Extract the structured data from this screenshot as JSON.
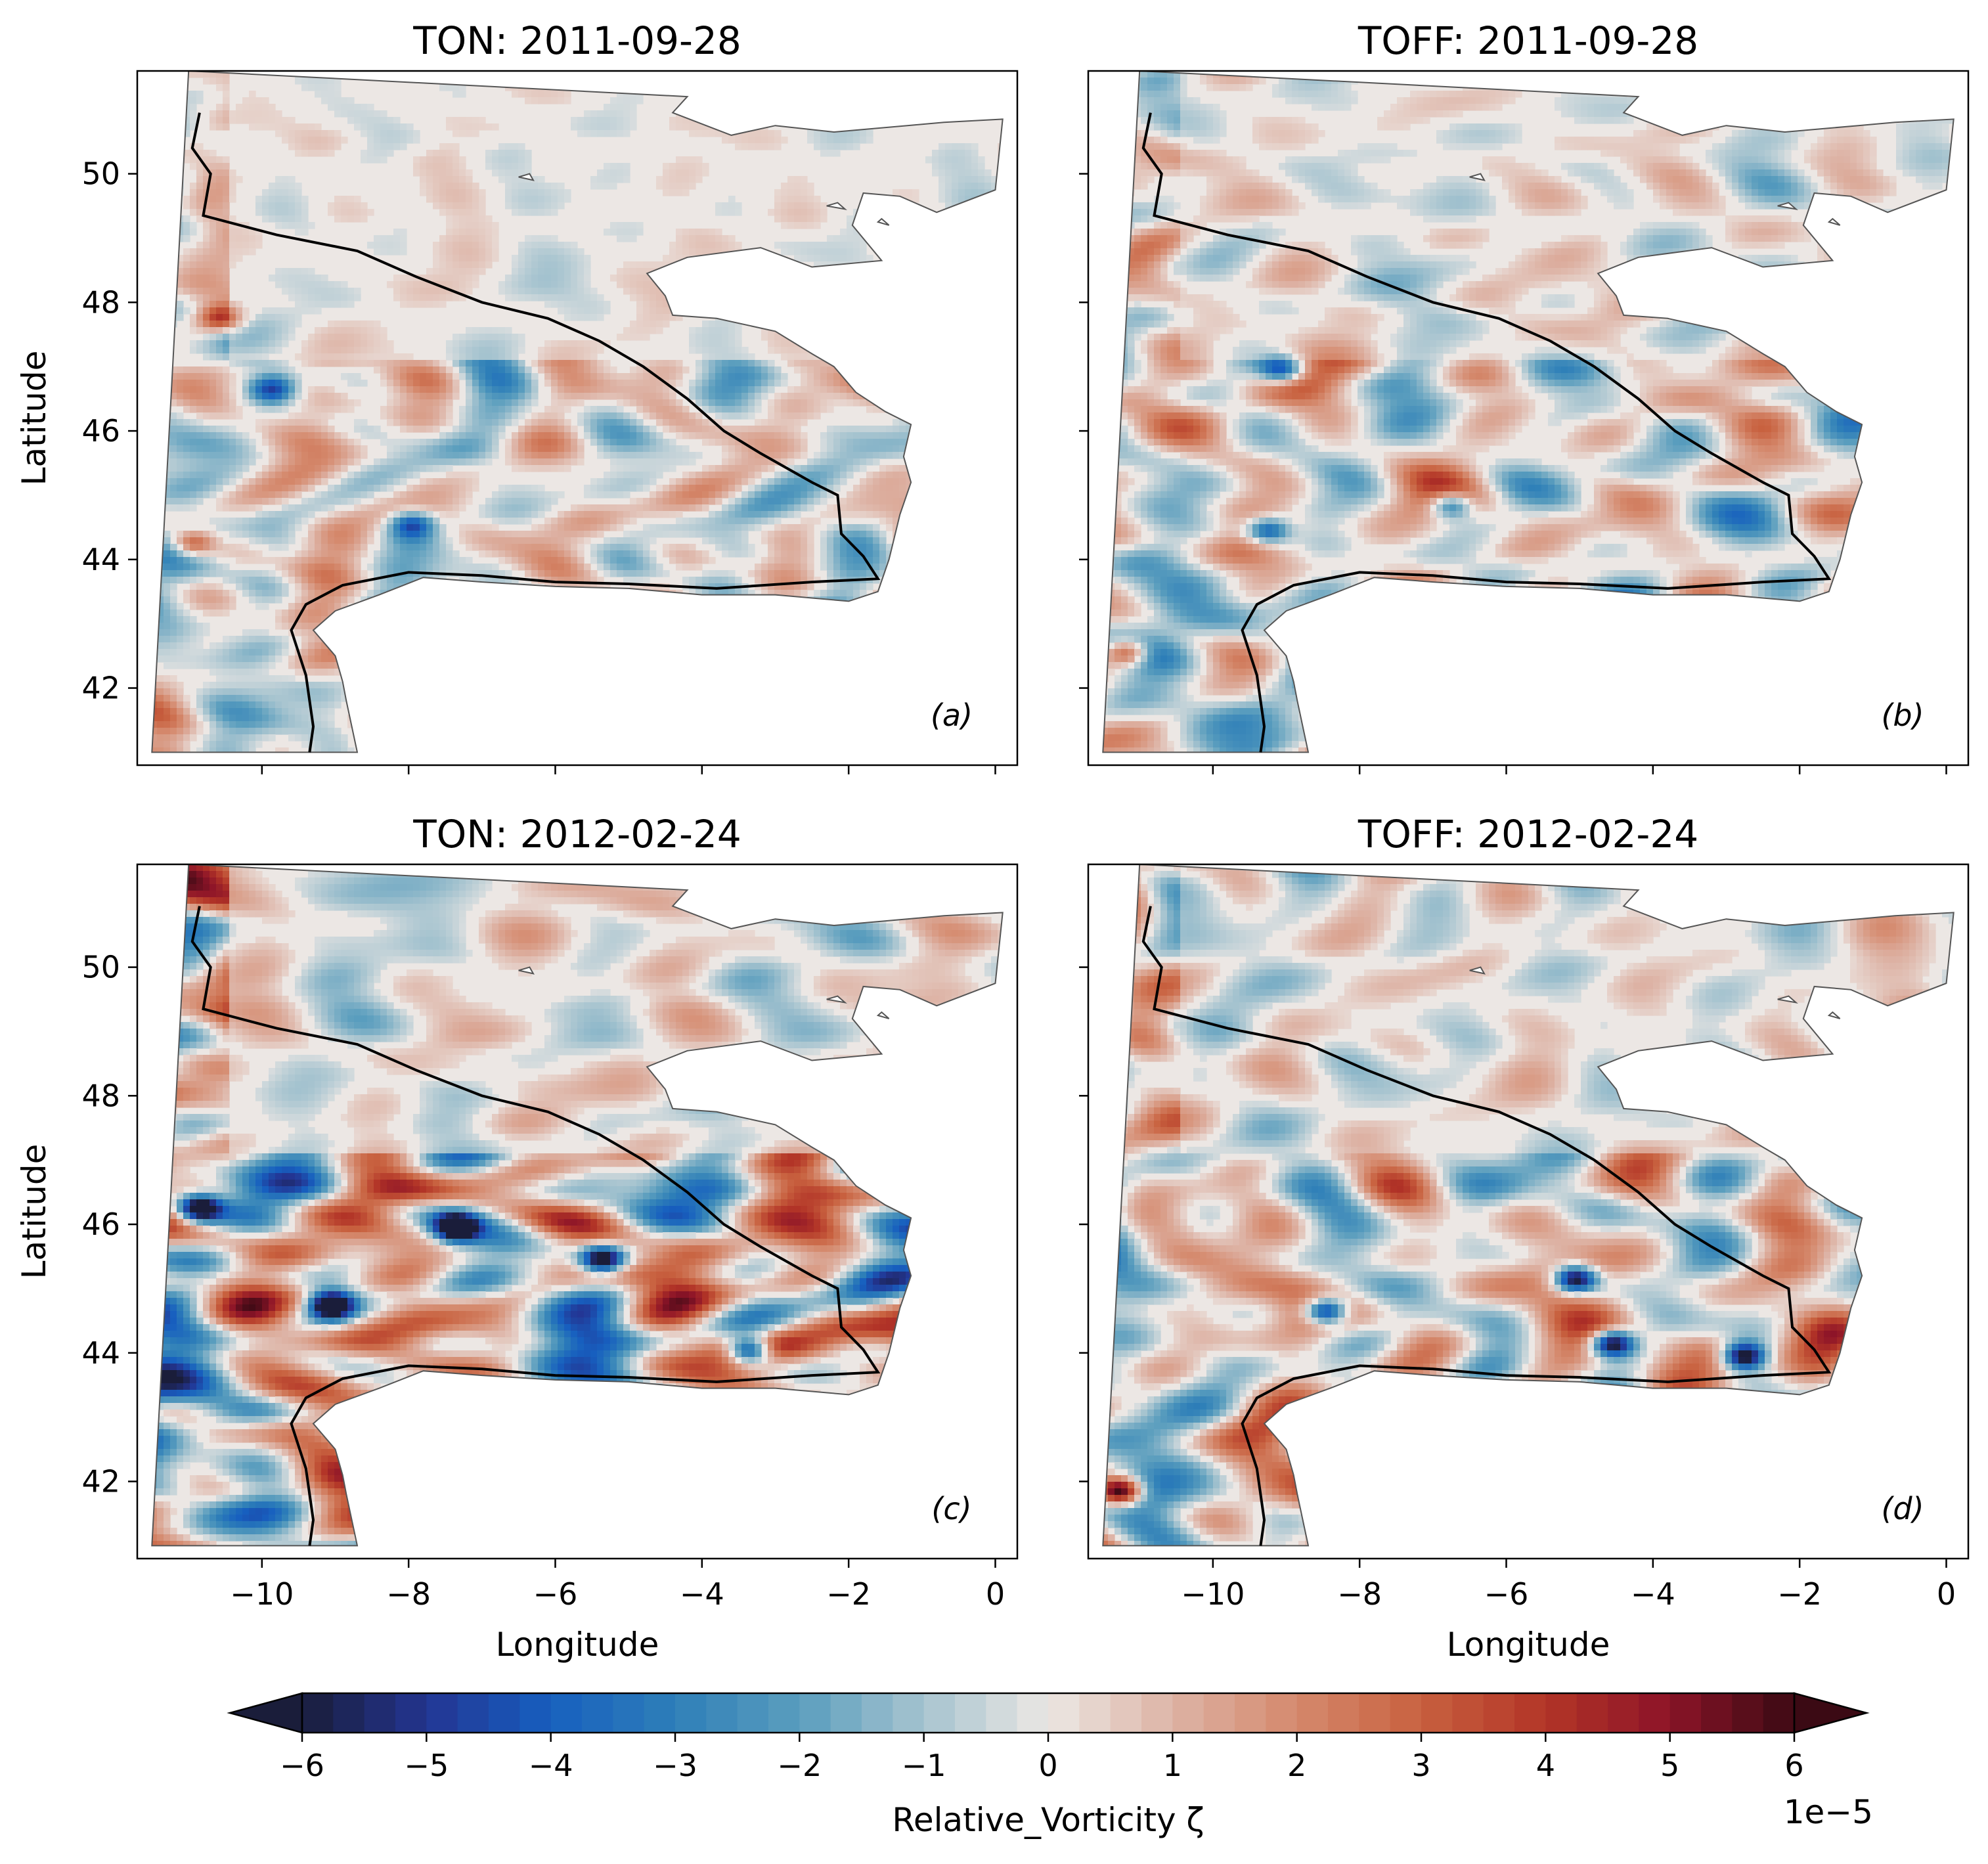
{
  "chart_data": [
    {
      "type": "heatmap",
      "title": "TON: 2011-09-28",
      "panel_label": "(a)",
      "xlabel": "",
      "ylabel": "Latitude",
      "xlim": [
        -11.7,
        0.3
      ],
      "ylim": [
        40.8,
        51.6
      ],
      "xticks": [
        -10,
        -8,
        -6,
        -4,
        -2,
        0
      ],
      "yticks": [
        42,
        44,
        46,
        48,
        50
      ],
      "xtick_labels_visible": false,
      "ytick_labels_visible": true,
      "intensity": 0.55,
      "seed": 11,
      "eddies": [
        {
          "x": -9.9,
          "y": 46.7,
          "sign": -1
        },
        {
          "x": -8.0,
          "y": 44.6,
          "sign": -1
        },
        {
          "x": -10.6,
          "y": 47.8,
          "sign": 1
        },
        {
          "x": -11.0,
          "y": 44.3,
          "sign": 1
        }
      ]
    },
    {
      "type": "heatmap",
      "title": "TOFF: 2011-09-28",
      "panel_label": "(b)",
      "xlabel": "",
      "ylabel": "",
      "xlim": [
        -11.7,
        0.3
      ],
      "ylim": [
        40.8,
        51.6
      ],
      "xticks": [
        -10,
        -8,
        -6,
        -4,
        -2,
        0
      ],
      "yticks": [
        42,
        44,
        46,
        48,
        50
      ],
      "xtick_labels_visible": false,
      "ytick_labels_visible": false,
      "intensity": 0.65,
      "seed": 23,
      "eddies": [
        {
          "x": -9.1,
          "y": 47.0,
          "sign": -1
        },
        {
          "x": -9.3,
          "y": 44.5,
          "sign": -1
        },
        {
          "x": -11.2,
          "y": 42.6,
          "sign": 1
        },
        {
          "x": -6.8,
          "y": 44.9,
          "sign": -1
        }
      ]
    },
    {
      "type": "heatmap",
      "title": "TON: 2012-02-24",
      "panel_label": "(c)",
      "xlabel": "Longitude",
      "ylabel": "Latitude",
      "xlim": [
        -11.7,
        0.3
      ],
      "ylim": [
        40.8,
        51.6
      ],
      "xticks": [
        -10,
        -8,
        -6,
        -4,
        -2,
        0
      ],
      "yticks": [
        42,
        44,
        46,
        48,
        50
      ],
      "xtick_labels_visible": true,
      "ytick_labels_visible": true,
      "intensity": 1.0,
      "seed": 37,
      "eddies": [
        {
          "x": -7.4,
          "y": 46.0,
          "sign": -1
        },
        {
          "x": -3.4,
          "y": 44.1,
          "sign": -1
        },
        {
          "x": -5.4,
          "y": 45.5,
          "sign": -1
        },
        {
          "x": -10.9,
          "y": 46.3,
          "sign": -1
        },
        {
          "x": -9.1,
          "y": 44.8,
          "sign": -1
        }
      ]
    },
    {
      "type": "heatmap",
      "title": "TOFF: 2012-02-24",
      "panel_label": "(d)",
      "xlabel": "Longitude",
      "ylabel": "",
      "xlim": [
        -11.7,
        0.3
      ],
      "ylim": [
        40.8,
        51.6
      ],
      "xticks": [
        -10,
        -8,
        -6,
        -4,
        -2,
        0
      ],
      "yticks": [
        42,
        44,
        46,
        48,
        50
      ],
      "xtick_labels_visible": true,
      "ytick_labels_visible": false,
      "intensity": 1.0,
      "seed": 53,
      "eddies": [
        {
          "x": -8.5,
          "y": 44.7,
          "sign": -1
        },
        {
          "x": -5.1,
          "y": 45.2,
          "sign": -1
        },
        {
          "x": -4.6,
          "y": 44.2,
          "sign": -1
        },
        {
          "x": -2.8,
          "y": 44.0,
          "sign": -1
        },
        {
          "x": -11.3,
          "y": 41.9,
          "sign": 1
        }
      ]
    }
  ],
  "colorbar": {
    "label": "Relative_Vorticity ζ",
    "multiplier": "1e−5",
    "min": -6,
    "max": 6,
    "ticks": [
      -6,
      -5,
      -4,
      -3,
      -2,
      -1,
      0,
      1,
      2,
      3,
      4,
      5,
      6
    ],
    "tick_labels": [
      "−6",
      "−5",
      "−4",
      "−3",
      "−2",
      "−1",
      "0",
      "1",
      "2",
      "3",
      "4",
      "5",
      "6"
    ],
    "n_levels": 48,
    "colormap_stops": [
      {
        "v": -1.0,
        "c": "#1a1d3a"
      },
      {
        "v": -0.83,
        "c": "#233593"
      },
      {
        "v": -0.67,
        "c": "#175fbf"
      },
      {
        "v": -0.5,
        "c": "#2e7fb8"
      },
      {
        "v": -0.33,
        "c": "#5b9ebe"
      },
      {
        "v": -0.17,
        "c": "#a5c3cf"
      },
      {
        "v": 0.0,
        "c": "#ece7e4"
      },
      {
        "v": 0.17,
        "c": "#ddb2a4"
      },
      {
        "v": 0.33,
        "c": "#d58a6e"
      },
      {
        "v": 0.5,
        "c": "#c8613f"
      },
      {
        "v": 0.67,
        "c": "#b23427"
      },
      {
        "v": 0.83,
        "c": "#8d1428"
      },
      {
        "v": 1.0,
        "c": "#3b0a14"
      }
    ],
    "extend": "both"
  },
  "xtick_labels": [
    "−10",
    "−8",
    "−6",
    "−4",
    "−2",
    "0"
  ],
  "ytick_labels": [
    "42",
    "44",
    "46",
    "48",
    "50"
  ],
  "colors": {
    "coastline": "#555555",
    "shelf_break": "#000000",
    "land": "#ffffff",
    "axes": "#000000"
  }
}
